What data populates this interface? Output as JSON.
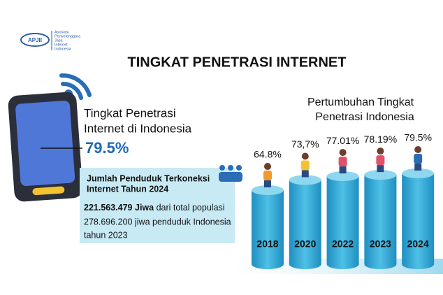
{
  "logo": {
    "name": "APJII",
    "lines": [
      "Asosiasi",
      "Penyelenggara",
      "Jasa",
      "Internet",
      "Indonesia"
    ]
  },
  "title": "TINGKAT PENETRASI INTERNET",
  "stat": {
    "label_lines": [
      "Tingkat Penetrasi",
      "Internet di Indonesia"
    ],
    "value": "79.5%"
  },
  "info_box": {
    "heading_lines": [
      "Jumlah Penduduk Terkoneksi",
      "Internet Tahun 2024"
    ],
    "highlight": "221.563.479 Jiwa",
    "text_lines": [
      " dari total populasi",
      "278.696.200 jiwa penduduk Indonesia",
      "tahun 2023"
    ]
  },
  "chart_data": {
    "type": "cylinder",
    "title_lines": [
      "Pertumbuhan Tingkat",
      "Penetrasi Indonesia"
    ],
    "categories": [
      "2018",
      "2020",
      "2022",
      "2023",
      "2024"
    ],
    "values": [
      64.8,
      73.7,
      77.01,
      78.19,
      79.5
    ],
    "value_labels": [
      "64.8%",
      "73,7%",
      "77.01%",
      "78.19%",
      "79.5%"
    ],
    "color": "#3fb3da"
  }
}
